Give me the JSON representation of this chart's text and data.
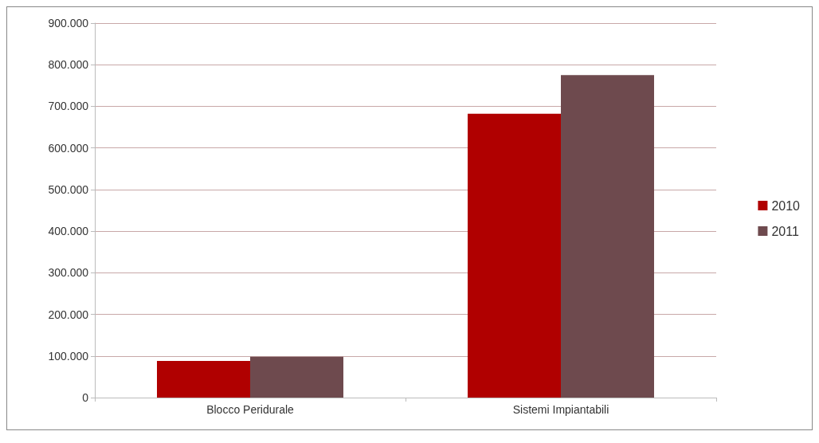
{
  "chart_data": {
    "type": "bar",
    "categories": [
      "Blocco Peridurale",
      "Sistemi Impiantabili"
    ],
    "series": [
      {
        "name": "2010",
        "color": "#b00000",
        "values": [
          88000,
          682000
        ]
      },
      {
        "name": "2011",
        "color": "#6e4a4e",
        "values": [
          98000,
          775000
        ]
      }
    ],
    "ylim": [
      0,
      900000
    ],
    "yticks": [
      {
        "value": 0,
        "label": "0"
      },
      {
        "value": 100000,
        "label": "100.000"
      },
      {
        "value": 200000,
        "label": "200.000"
      },
      {
        "value": 300000,
        "label": "300.000"
      },
      {
        "value": 400000,
        "label": "400.000"
      },
      {
        "value": 500000,
        "label": "500.000"
      },
      {
        "value": 600000,
        "label": "600.000"
      },
      {
        "value": 700000,
        "label": "700.000"
      },
      {
        "value": 800000,
        "label": "800.000"
      },
      {
        "value": 900000,
        "label": "900.000"
      }
    ],
    "grid": "y",
    "legend": "right"
  }
}
